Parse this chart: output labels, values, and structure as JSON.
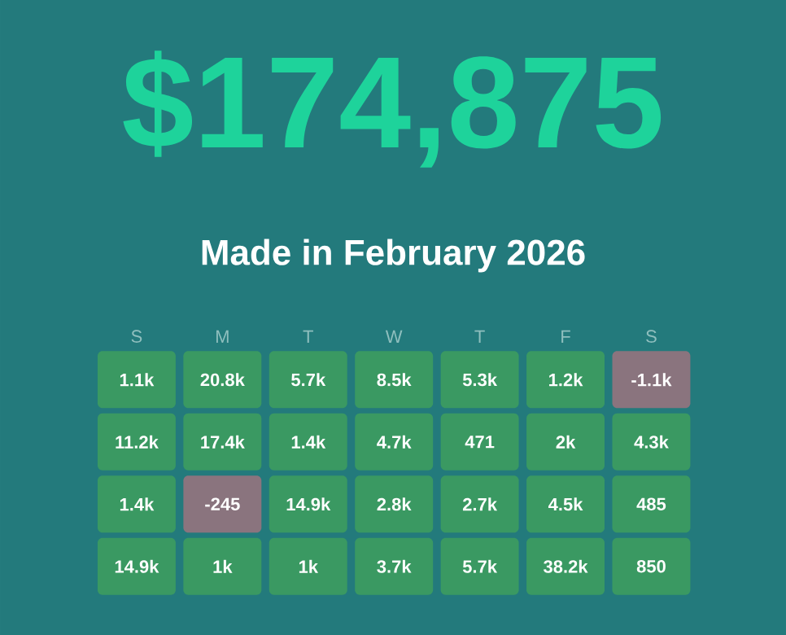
{
  "chart_data": {
    "type": "heatmap",
    "title": "$174,875",
    "subtitle": "Made in February 2026",
    "categories": [
      "S",
      "M",
      "T",
      "W",
      "T",
      "F",
      "S"
    ],
    "y_categories": [
      null,
      null,
      null,
      null
    ],
    "cells": [
      [
        1100,
        20800,
        5700,
        8500,
        5300,
        1200,
        -1100
      ],
      [
        11200,
        17400,
        1400,
        4700,
        471,
        2000,
        4300
      ],
      [
        1400,
        -245,
        14900,
        2800,
        2700,
        4500,
        485
      ],
      [
        14900,
        1000,
        1000,
        3700,
        5700,
        38200,
        850
      ]
    ],
    "cell_labels": [
      [
        "1.1k",
        "20.8k",
        "5.7k",
        "8.5k",
        "5.3k",
        "1.2k",
        "-1.1k"
      ],
      [
        "11.2k",
        "17.4k",
        "1.4k",
        "4.7k",
        "471",
        "2k",
        "4.3k"
      ],
      [
        "1.4k",
        "-245",
        "14.9k",
        "2.8k",
        "2.7k",
        "4.5k",
        "485"
      ],
      [
        "14.9k",
        "1k",
        "1k",
        "3.7k",
        "5.7k",
        "38.2k",
        "850"
      ]
    ],
    "colors": [
      "#8a747e",
      "#3a9962"
    ]
  }
}
